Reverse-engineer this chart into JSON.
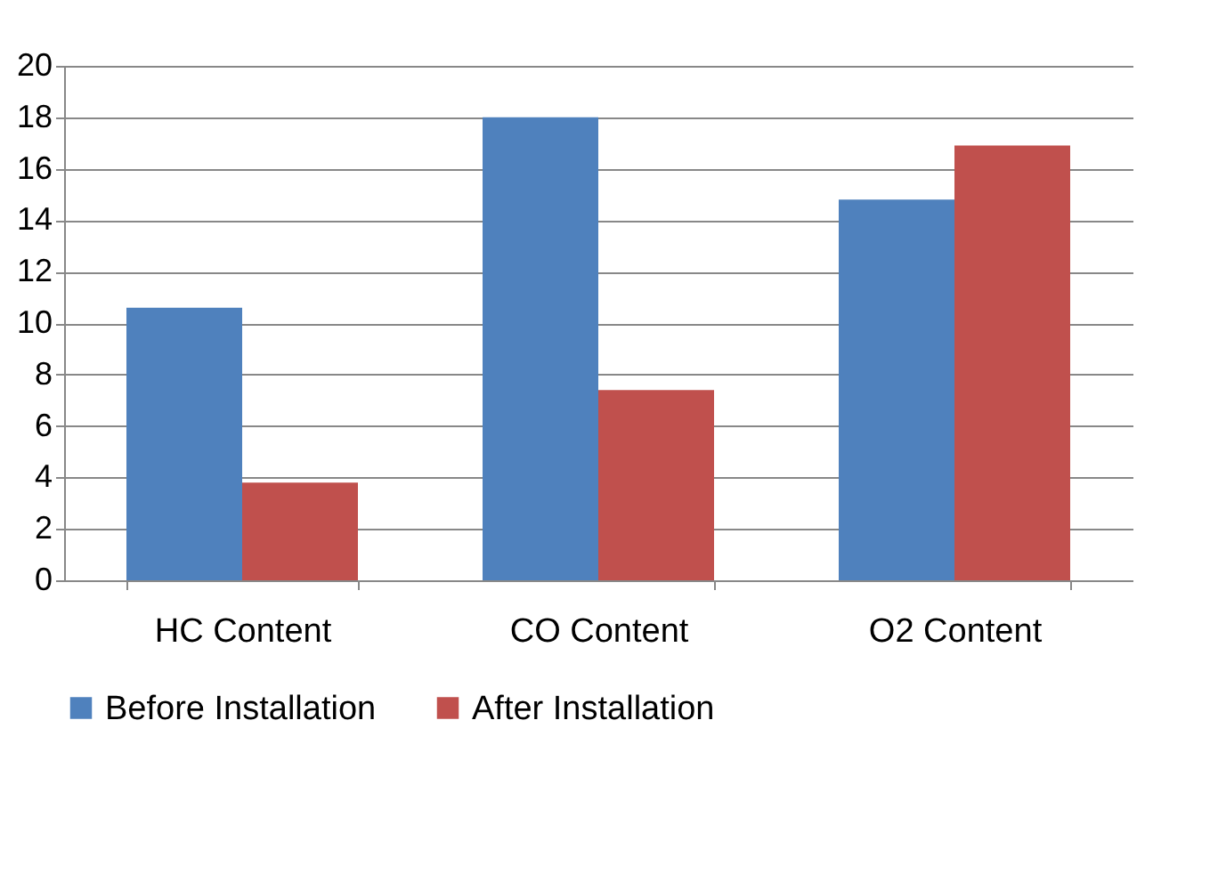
{
  "chart_data": {
    "type": "bar",
    "categories": [
      "HC Content",
      "CO Content",
      "O2 Content"
    ],
    "series": [
      {
        "name": "Before Installation",
        "color": "#4f81bd",
        "values": [
          10.6,
          18.0,
          14.8
        ]
      },
      {
        "name": "After Installation",
        "color": "#c0504d",
        "values": [
          3.8,
          7.4,
          16.9
        ]
      }
    ],
    "ylim": [
      0,
      20
    ],
    "yticks": [
      0,
      2,
      4,
      6,
      8,
      10,
      12,
      14,
      16,
      18,
      20
    ],
    "grid": "y",
    "legend": "bottom"
  }
}
